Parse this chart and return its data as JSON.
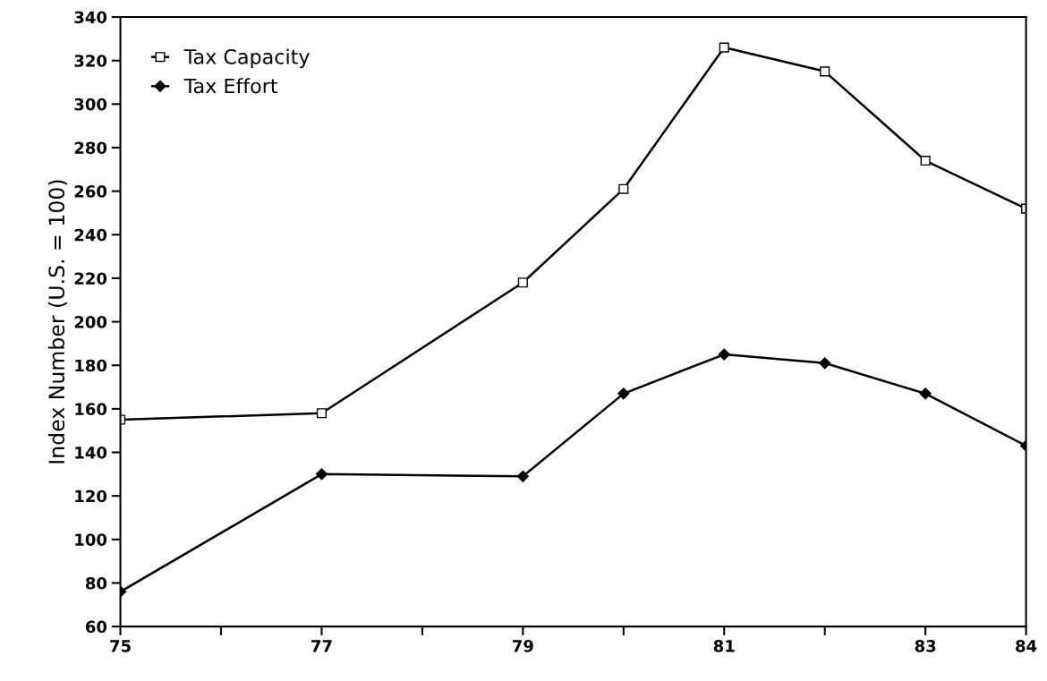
{
  "chart_data": {
    "type": "line",
    "ylabel": "Index Number (U.S. = 100)",
    "x": [
      75,
      77,
      79,
      80,
      81,
      82,
      83,
      84
    ],
    "series": [
      {
        "name": "Tax Capacity",
        "color": "#000000",
        "marker": "square",
        "values": [
          155,
          158,
          218,
          261,
          326,
          315,
          274,
          252
        ]
      },
      {
        "name": "Tax Effort",
        "color": "#000000",
        "marker": "diamond",
        "values": [
          76,
          130,
          129,
          167,
          185,
          181,
          167,
          143
        ]
      }
    ],
    "xlim": [
      75,
      84
    ],
    "xticks": [
      75,
      {
        "value": 76,
        "label": null
      },
      77,
      {
        "value": 78,
        "label": null
      },
      79,
      {
        "value": 80,
        "label": null
      },
      81,
      {
        "value": 82,
        "label": null
      },
      83,
      84
    ],
    "ylim": [
      60,
      340
    ],
    "yticks": [
      60,
      80,
      100,
      120,
      140,
      160,
      180,
      200,
      220,
      240,
      260,
      280,
      300,
      320,
      340
    ],
    "grid": false,
    "legend": "top left",
    "line_style": "solid"
  }
}
